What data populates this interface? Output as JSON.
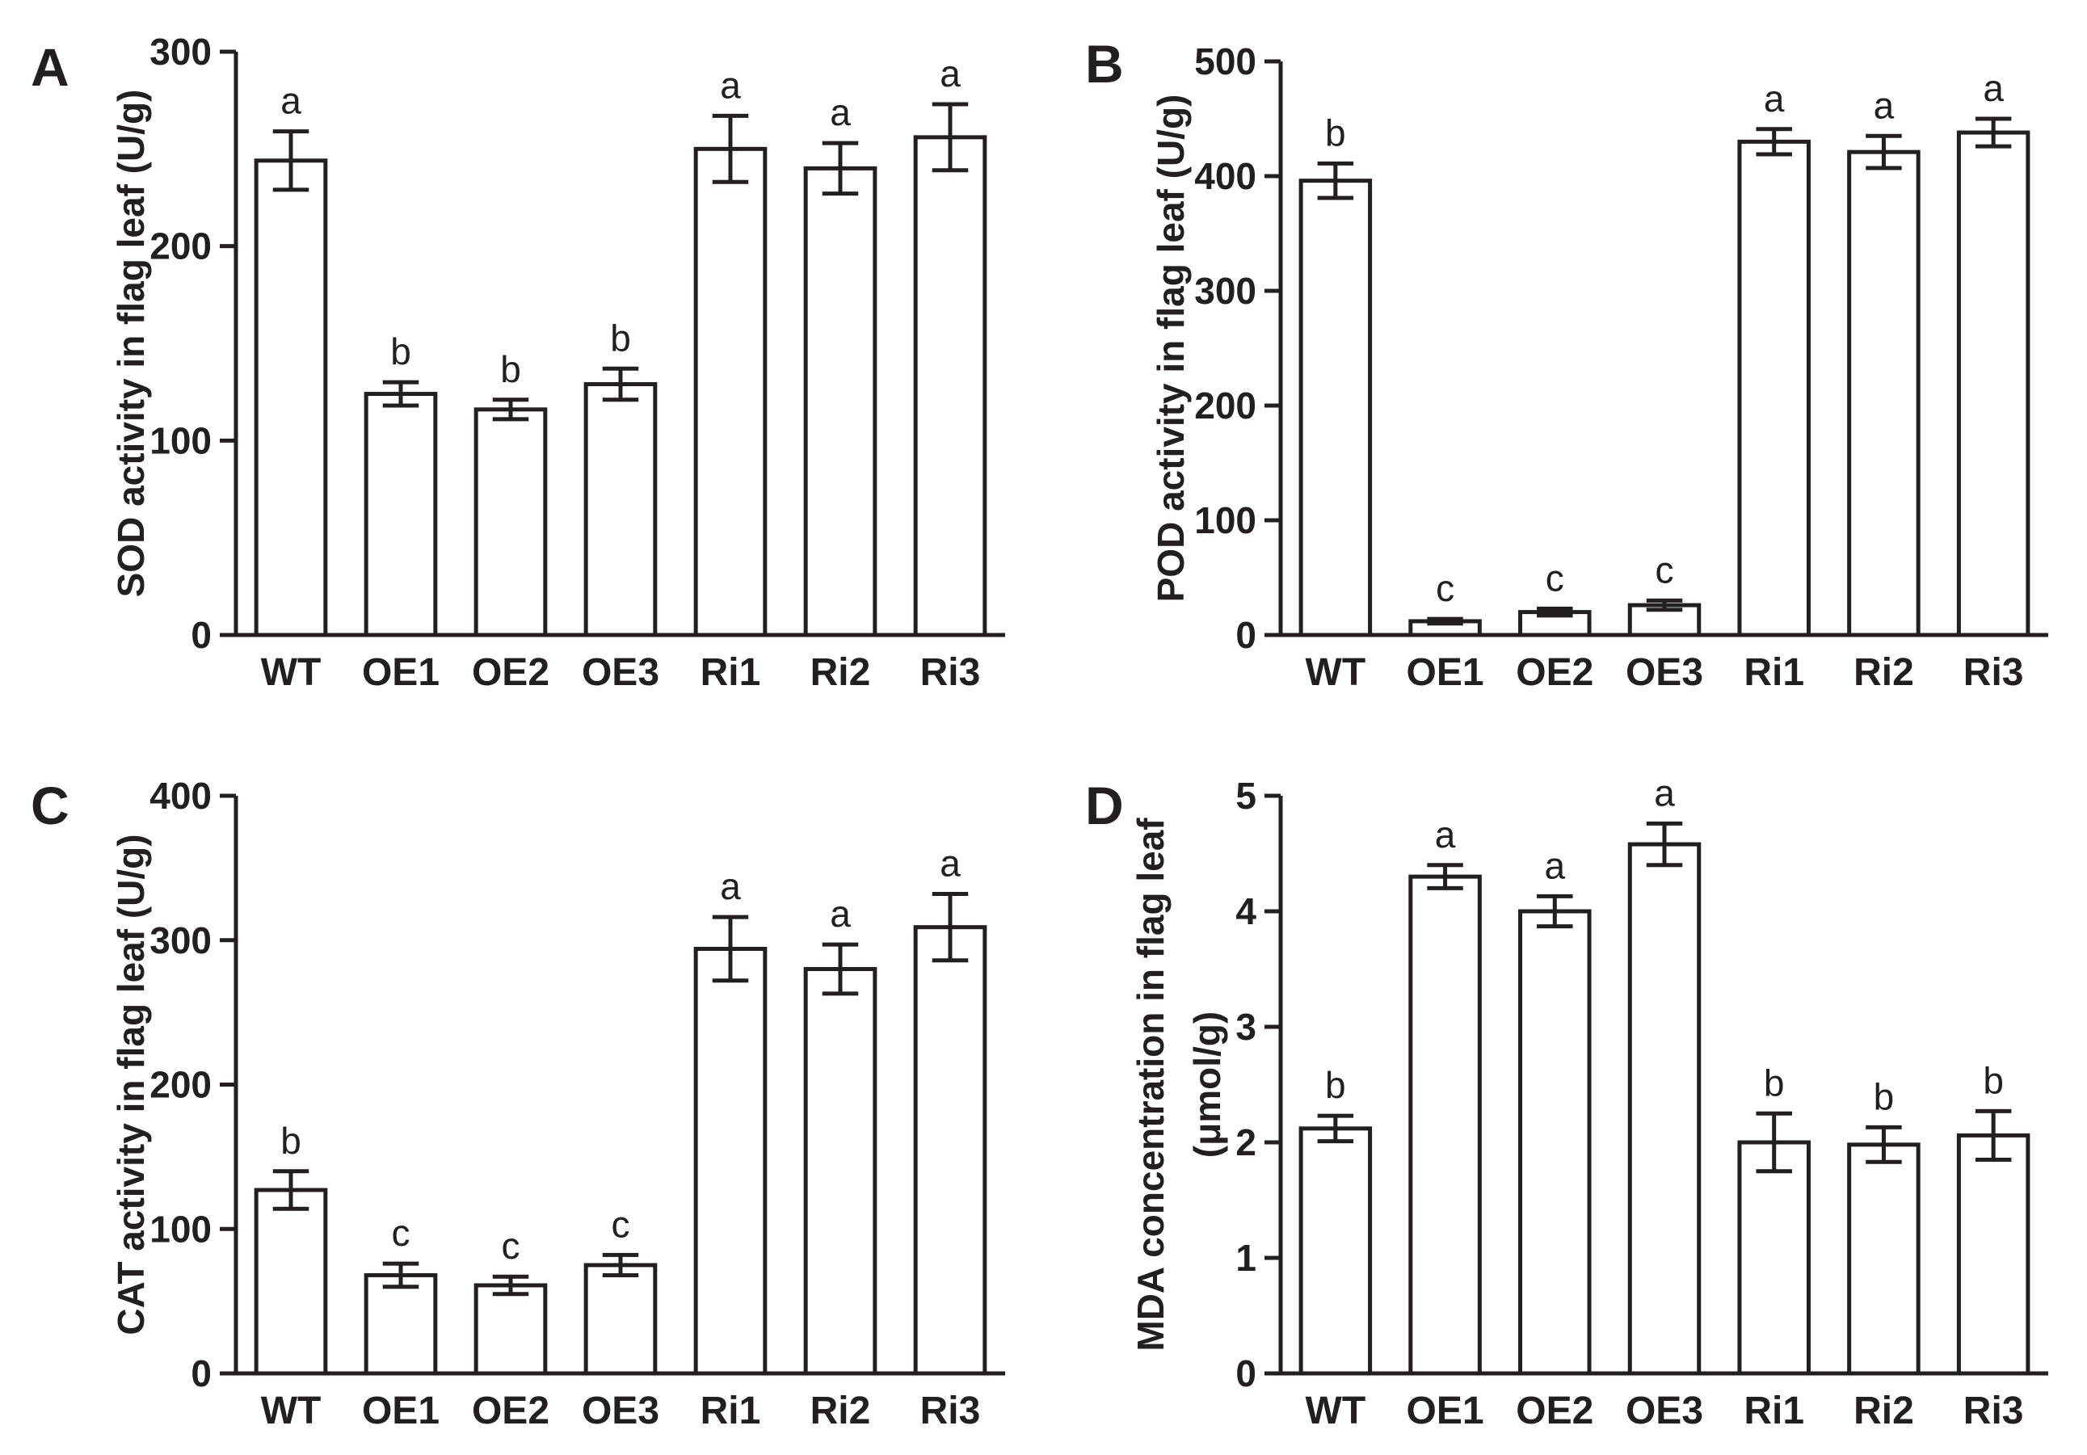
{
  "chart_data": [
    {
      "panel": "A",
      "type": "bar",
      "ylabel": "SOD activity in flag leaf (U/g)",
      "ylim": [
        0,
        300
      ],
      "yticks": [
        0,
        100,
        200,
        300
      ],
      "categories": [
        "WT",
        "OE1",
        "OE2",
        "OE3",
        "Ri1",
        "Ri2",
        "Ri3"
      ],
      "values": [
        244,
        124,
        116,
        129,
        250,
        240,
        256
      ],
      "errors": [
        15,
        6,
        5,
        8,
        17,
        13,
        17
      ],
      "significance": [
        "a",
        "b",
        "b",
        "b",
        "a",
        "a",
        "a"
      ]
    },
    {
      "panel": "B",
      "type": "bar",
      "ylabel": "POD activity in flag leaf (U/g)",
      "ylim": [
        0,
        500
      ],
      "yticks": [
        0,
        100,
        200,
        300,
        400,
        500
      ],
      "categories": [
        "WT",
        "OE1",
        "OE2",
        "OE3",
        "Ri1",
        "Ri2",
        "Ri3"
      ],
      "values": [
        396,
        12,
        20,
        26,
        430,
        421,
        438
      ],
      "errors": [
        15,
        2,
        3,
        4,
        11,
        14,
        12
      ],
      "significance": [
        "b",
        "c",
        "c",
        "c",
        "a",
        "a",
        "a"
      ]
    },
    {
      "panel": "C",
      "type": "bar",
      "ylabel": "CAT activity in flag leaf (U/g)",
      "ylim": [
        0,
        400
      ],
      "yticks": [
        0,
        100,
        200,
        300,
        400
      ],
      "categories": [
        "WT",
        "OE1",
        "OE2",
        "OE3",
        "Ri1",
        "Ri2",
        "Ri3"
      ],
      "values": [
        127,
        68,
        61,
        75,
        294,
        280,
        309
      ],
      "errors": [
        13,
        8,
        6,
        7,
        22,
        17,
        23
      ],
      "significance": [
        "b",
        "c",
        "c",
        "c",
        "a",
        "a",
        "a"
      ]
    },
    {
      "panel": "D",
      "type": "bar",
      "ylabel": [
        "MDA concentration in flag leaf",
        "(μmol/g)"
      ],
      "ylim": [
        0,
        5
      ],
      "yticks": [
        0,
        1,
        2,
        3,
        4,
        5
      ],
      "categories": [
        "WT",
        "OE1",
        "OE2",
        "OE3",
        "Ri1",
        "Ri2",
        "Ri3"
      ],
      "values": [
        2.12,
        4.3,
        4.0,
        4.58,
        2.0,
        1.98,
        2.06
      ],
      "errors": [
        0.11,
        0.1,
        0.13,
        0.18,
        0.25,
        0.15,
        0.21
      ],
      "significance": [
        "b",
        "a",
        "a",
        "a",
        "b",
        "b",
        "b"
      ]
    }
  ]
}
